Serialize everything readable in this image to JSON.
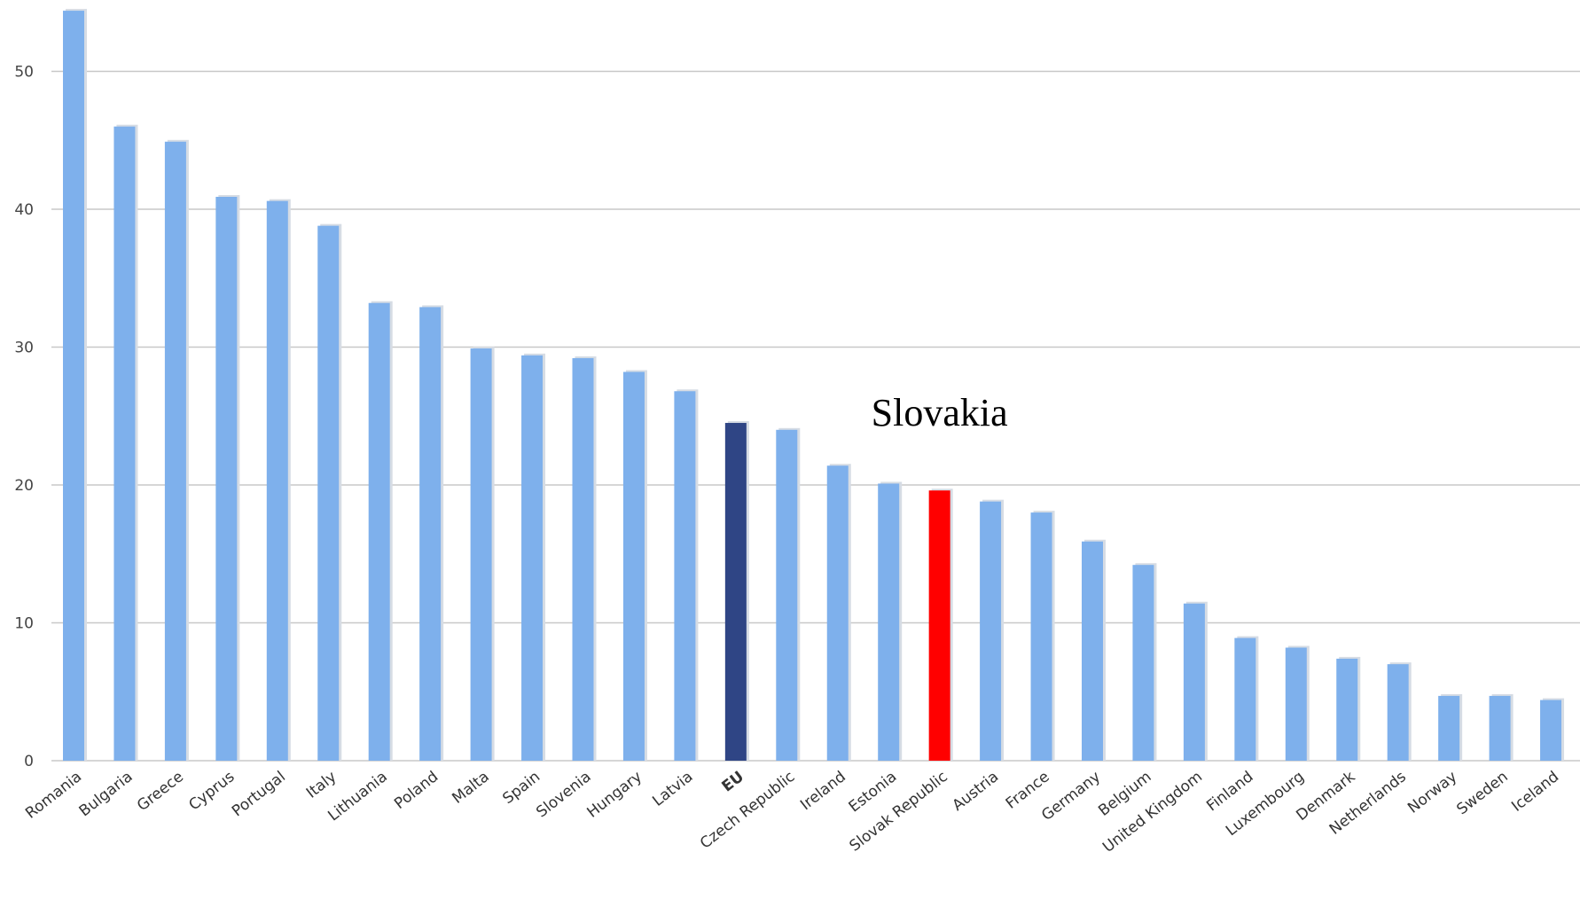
{
  "chart_data": {
    "type": "bar",
    "categories": [
      "Romania",
      "Bulgaria",
      "Greece",
      "Cyprus",
      "Portugal",
      "Italy",
      "Lithuania",
      "Poland",
      "Malta",
      "Spain",
      "Slovenia",
      "Hungary",
      "Latvia",
      "EU",
      "Czech Republic",
      "Ireland",
      "Estonia",
      "Slovak Republic",
      "Austria",
      "France",
      "Germany",
      "Belgium",
      "United Kingdom",
      "Finland",
      "Luxembourg",
      "Denmark",
      "Netherlands",
      "Norway",
      "Sweden",
      "Iceland"
    ],
    "values": [
      54.4,
      46.0,
      44.9,
      40.9,
      40.6,
      38.8,
      33.2,
      32.9,
      29.9,
      29.4,
      29.2,
      28.2,
      26.8,
      24.5,
      24.0,
      21.4,
      20.1,
      19.6,
      18.8,
      18.0,
      15.9,
      14.2,
      11.4,
      8.9,
      8.2,
      7.4,
      7.0,
      4.7,
      4.7,
      4.4
    ],
    "colors": {
      "default": "#7eb0ec",
      "highlight_eu": "#2f4585",
      "highlight_slovakia": "#ff0000"
    },
    "highlights": {
      "EU": "highlight_eu",
      "Slovak Republic": "highlight_slovakia"
    },
    "yticks": [
      0,
      10,
      20,
      30,
      40,
      50
    ],
    "ylim": [
      0,
      55
    ],
    "grid": true,
    "legend": "none",
    "title": "",
    "xlabel": "",
    "ylabel": "",
    "annotation": {
      "text": "Slovakia",
      "target": "Slovak Republic"
    }
  }
}
